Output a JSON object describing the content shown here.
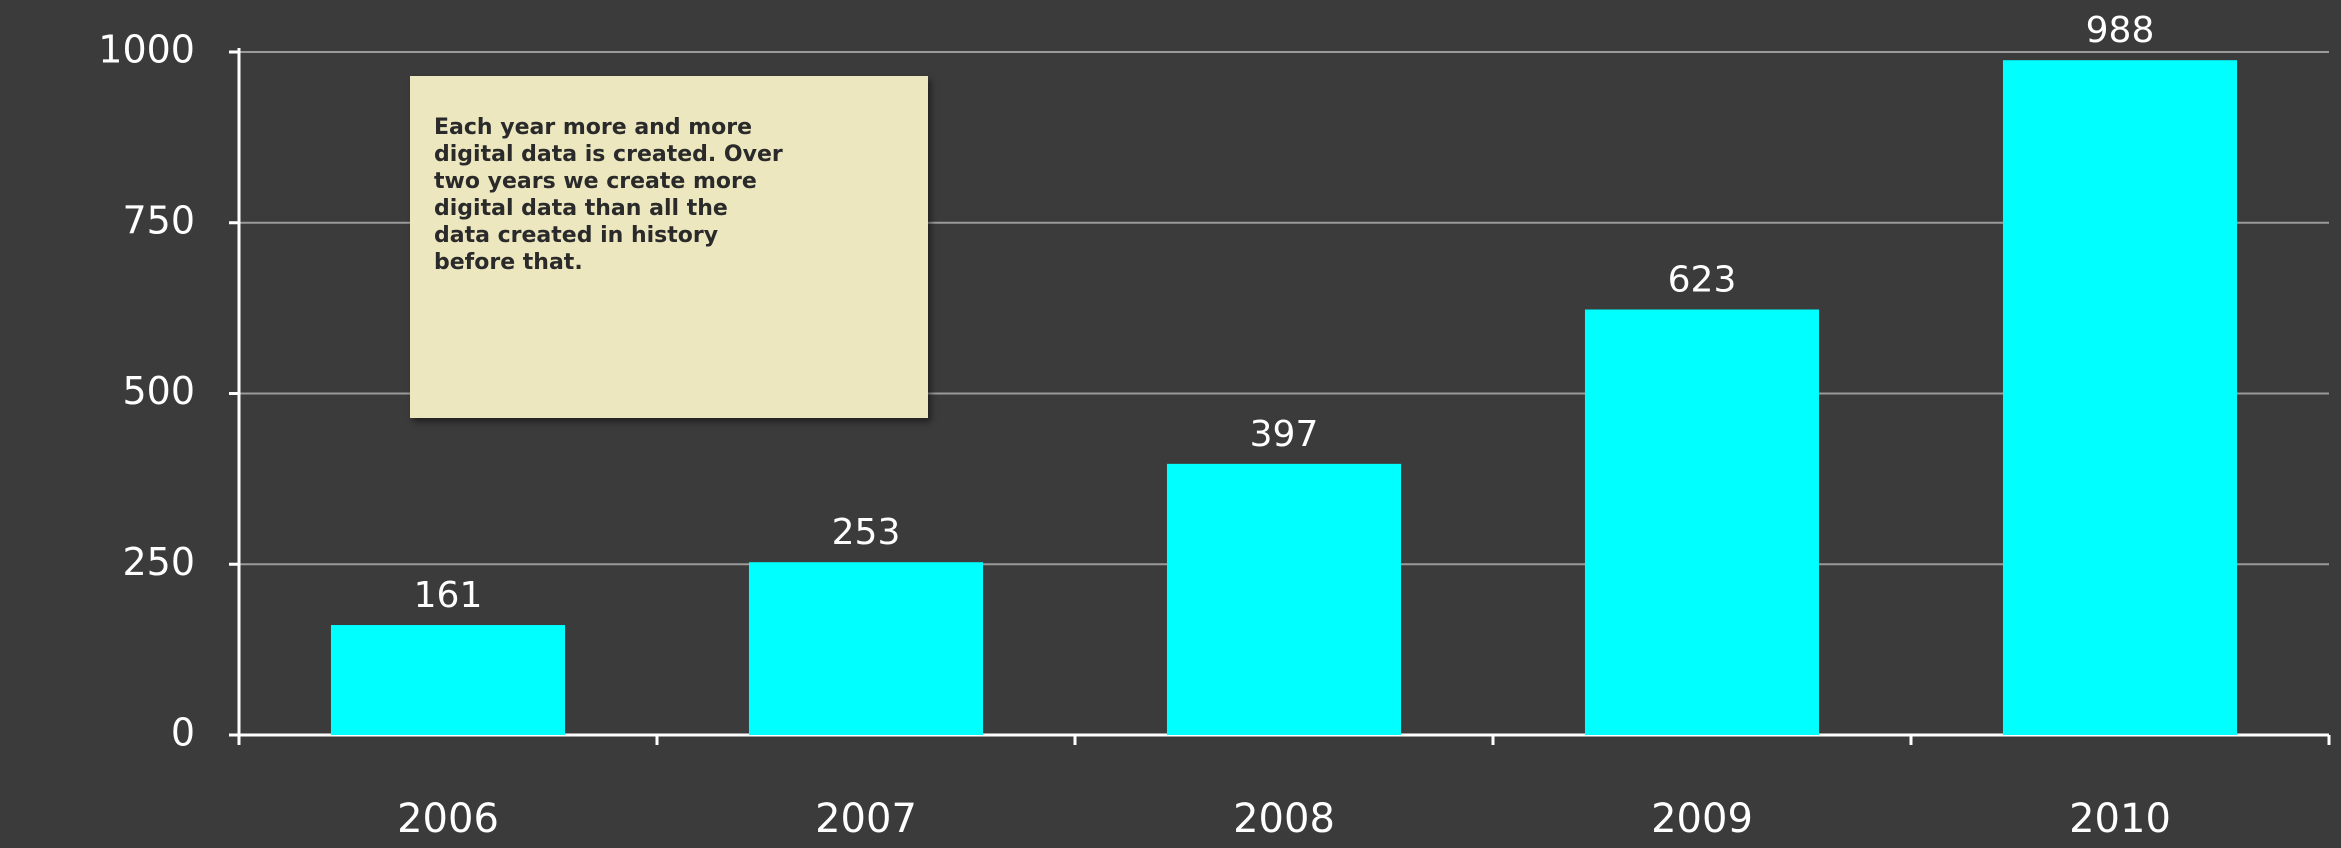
{
  "chart_data": {
    "type": "bar",
    "categories": [
      "2006",
      "2007",
      "2008",
      "2009",
      "2010"
    ],
    "values": [
      161,
      253,
      397,
      623,
      988
    ],
    "color": "#00ffff",
    "ylim": [
      0,
      1000
    ],
    "yticks": [
      0,
      250,
      500,
      750,
      1000
    ],
    "grid": true,
    "annotation": "Each year more and more digital data is created. Over two years we create more digital data than all the data created in history before that."
  }
}
